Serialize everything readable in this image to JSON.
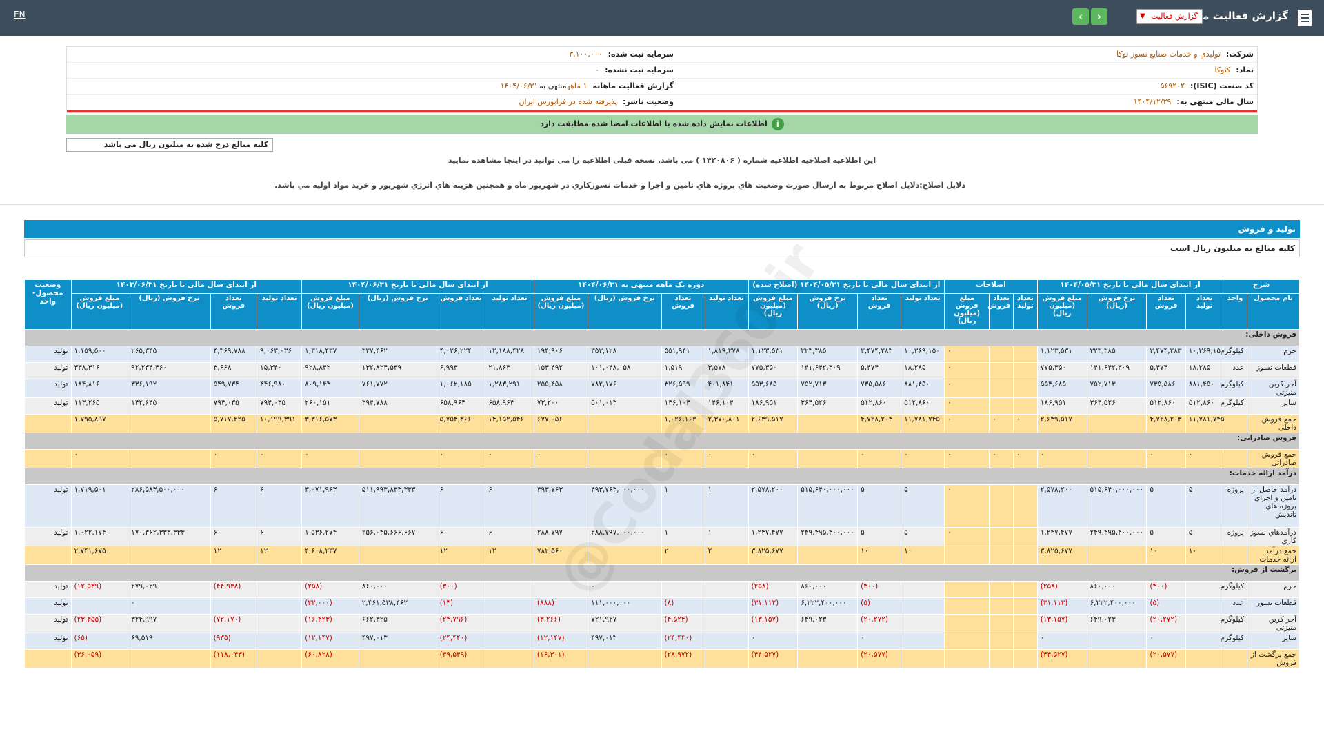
{
  "header": {
    "title": "گزارش فعالیت ماهانه",
    "select_value": "گزارش فعالیت",
    "lang": "EN",
    "prev_icon": "chevron-left-icon",
    "next_icon": "chevron-right-icon"
  },
  "company": {
    "company_label": "شرکت:",
    "company_value": "توليدي و خدمات صنايع نسوز توكا",
    "symbol_label": "نماد:",
    "symbol_value": "کتوکا",
    "isic_label": "کد صنعت (ISIC):",
    "isic_value": "۵۶۹۲۰۲",
    "fy_label": "سال مالی منتهی به:",
    "fy_value": "۱۴۰۴/۱۲/۲۹",
    "reg_capital_label": "سرمایه ثبت شده:",
    "reg_capital_value": "۳,۱۰۰,۰۰۰",
    "unreg_capital_label": "سرمایه ثبت نشده:",
    "unreg_capital_value": "۰",
    "report_label": "گزارش فعالیت ماهانه",
    "report_value": "۱ ماهه",
    "report_value2": "منتهی به",
    "report_value3": "۱۴۰۴/۰۶/۳۱",
    "status_label": "وضعیت ناشر:",
    "status_value": "پذیرفته شده در فرابورس ایران"
  },
  "green_message": "اطلاعات نمایش داده شده با اطلاعات امضا شده مطابقت دارد",
  "unit_note": "کلیه مبالغ درج شده به میلیون ریال می باشد",
  "notice1": "این اطلاعیه اصلاحیه اطلاعیه شماره ( ۱۴۲۰۸۰۶ ) می باشد. نسخه قبلی اطلاعیه را می توانید در اینجا مشاهده نمایید",
  "notice2": "دلایل اصلاح:دلايل اصلاح مربوط به ارسال صورت وضعيت هاي پروژه هاي تامين و اجرا و خدمات نسوزكاري در شهريور ماه و همچنين هزينه هاي انرژي شهريور و خريد مواد اوليه مي باشد.",
  "section_title": "تولید و فروش",
  "section_sub": "کلیه مبالغ به میلیون ریال است",
  "watermark": "@Codal360.ir",
  "table": {
    "group_headers": [
      "شرح",
      "از ابتدای سال مالی تا تاریخ ۱۴۰۴/۰۵/۳۱",
      "اصلاحات",
      "از ابتدای سال مالی تا تاریخ ۱۴۰۴/۰۵/۳۱ (اصلاح شده)",
      "دوره یک ماهه منتهی به ۱۴۰۴/۰۶/۳۱",
      "از ابتدای سال مالی تا تاریخ ۱۴۰۴/۰۶/۳۱",
      "از ابتدای سال مالی تا تاریخ ۱۴۰۳/۰۶/۳۱",
      "وضعیت محصول-واحد"
    ],
    "sub_headers": [
      "نام محصول",
      "واحد",
      "تعداد تولید",
      "تعداد فروش",
      "نرخ فروش (ریال)",
      "مبلغ فروش (میلیون ریال)",
      "تعداد تولید",
      "تعداد فروش",
      "مبلغ فروش (میلیون ریال)",
      "تعداد تولید",
      "تعداد فروش",
      "نرخ فروش (ریال)",
      "مبلغ فروش (میلیون ریال)",
      "تعداد تولید",
      "تعداد فروش",
      "نرخ فروش (ریال)",
      "مبلغ فروش (میلیون ریال)",
      "تعداد تولید",
      "تعداد فروش",
      "نرخ فروش (ریال)",
      "مبلغ فروش (میلیون ریال)",
      "تعداد تولید",
      "تعداد فروش",
      "نرخ فروش (ریال)",
      "مبلغ فروش (میلیون ریال)"
    ],
    "rows": [
      {
        "type": "sec",
        "label": "فروش داخلی:"
      },
      {
        "type": "even",
        "cells": [
          "جرم",
          "کیلوگرم",
          "۱۰,۳۶۹,۱۵۰",
          "۳,۴۷۴,۲۸۳",
          "۳۲۳,۳۸۵",
          "۱,۱۲۳,۵۳۱",
          "",
          "",
          "۰",
          "۱۰,۳۶۹,۱۵۰",
          "۳,۴۷۴,۲۸۳",
          "۳۲۳,۳۸۵",
          "۱,۱۲۳,۵۳۱",
          "۱,۸۱۹,۲۷۸",
          "۵۵۱,۹۴۱",
          "۳۵۳,۱۲۸",
          "۱۹۴,۹۰۶",
          "۱۲,۱۸۸,۴۲۸",
          "۴,۰۲۶,۲۲۴",
          "۳۲۷,۴۶۲",
          "۱,۳۱۸,۴۳۷",
          "۹,۰۶۳,۰۳۶",
          "۴,۳۶۹,۷۸۸",
          "۲۶۵,۳۴۵",
          "۱,۱۵۹,۵۰۰",
          "تولید"
        ]
      },
      {
        "type": "odd",
        "cells": [
          "قطعات نسوز",
          "عدد",
          "۱۸,۲۸۵",
          "۵,۴۷۴",
          "۱۴۱,۶۴۲,۳۰۹",
          "۷۷۵,۳۵۰",
          "",
          "",
          "۰",
          "۱۸,۲۸۵",
          "۵,۴۷۴",
          "۱۴۱,۶۴۲,۳۰۹",
          "۷۷۵,۳۵۰",
          "۳,۵۷۸",
          "۱,۵۱۹",
          "۱۰۱,۰۴۸,۰۵۸",
          "۱۵۳,۴۹۲",
          "۲۱,۸۶۳",
          "۶,۹۹۳",
          "۱۳۲,۸۲۴,۵۳۹",
          "۹۲۸,۸۴۲",
          "۱۵,۳۴۰",
          "۳,۶۶۸",
          "۹۲,۲۳۴,۴۶۰",
          "۳۳۸,۳۱۶",
          "تولید"
        ]
      },
      {
        "type": "even",
        "cells": [
          "آجر کربن منیزتی",
          "کیلوگرم",
          "۸۸۱,۴۵۰",
          "۷۳۵,۵۸۶",
          "۷۵۲,۷۱۳",
          "۵۵۳,۶۸۵",
          "",
          "",
          "۰",
          "۸۸۱,۴۵۰",
          "۷۳۵,۵۸۶",
          "۷۵۲,۷۱۳",
          "۵۵۳,۶۸۵",
          "۴۰۱,۸۴۱",
          "۳۲۶,۵۹۹",
          "۷۸۲,۱۷۶",
          "۲۵۵,۴۵۸",
          "۱,۲۸۳,۲۹۱",
          "۱,۰۶۲,۱۸۵",
          "۷۶۱,۷۷۲",
          "۸۰۹,۱۴۳",
          "۴۴۶,۹۸۰",
          "۵۴۹,۷۳۴",
          "۳۳۶,۱۹۲",
          "۱۸۴,۸۱۶",
          "تولید"
        ]
      },
      {
        "type": "odd",
        "cells": [
          "سایر",
          "کیلوگرم",
          "۵۱۲,۸۶۰",
          "۵۱۲,۸۶۰",
          "۳۶۴,۵۲۶",
          "۱۸۶,۹۵۱",
          "",
          "",
          "۰",
          "۵۱۲,۸۶۰",
          "۵۱۲,۸۶۰",
          "۳۶۴,۵۲۶",
          "۱۸۶,۹۵۱",
          "۱۴۶,۱۰۴",
          "۱۴۶,۱۰۴",
          "۵۰۱,۰۱۳",
          "۷۳,۲۰۰",
          "۶۵۸,۹۶۴",
          "۶۵۸,۹۶۴",
          "۳۹۴,۷۸۸",
          "۲۶۰,۱۵۱",
          "۷۹۴,۰۳۵",
          "۷۹۴,۰۳۵",
          "۱۴۲,۶۴۵",
          "۱۱۳,۲۶۵",
          "تولید"
        ]
      },
      {
        "type": "tot",
        "cells": [
          "جمع فروش داخلی",
          "",
          "۱۱,۷۸۱,۷۴۵",
          "۴,۷۲۸,۲۰۳",
          "",
          "۲,۶۳۹,۵۱۷",
          "۰",
          "۰",
          "۰",
          "۱۱,۷۸۱,۷۴۵",
          "۴,۷۲۸,۲۰۳",
          "",
          "۲,۶۳۹,۵۱۷",
          "۲,۳۷۰,۸۰۱",
          "۱,۰۲۶,۱۶۳",
          "",
          "۶۷۷,۰۵۶",
          "۱۴,۱۵۲,۵۴۶",
          "۵,۷۵۴,۳۶۶",
          "",
          "۳,۳۱۶,۵۷۳",
          "۱۰,۱۹۹,۳۹۱",
          "۵,۷۱۷,۲۲۵",
          "",
          "۱,۷۹۵,۸۹۷",
          ""
        ]
      },
      {
        "type": "sec",
        "label": "فروش صادراتی:"
      },
      {
        "type": "tot",
        "cells": [
          "جمع فروش صادراتی",
          "",
          "۰",
          "۰",
          "",
          "۰",
          "۰",
          "۰",
          "۰",
          "۰",
          "۰",
          "",
          "۰",
          "۰",
          "۰",
          "",
          "۰",
          "۰",
          "۰",
          "",
          "۰",
          "۰",
          "۰",
          "",
          "۰",
          ""
        ]
      },
      {
        "type": "sec",
        "label": "درآمد ارائه خدمات:"
      },
      {
        "type": "even",
        "tall": true,
        "cells": [
          "درآمد حاصل از تامين و اجراي پروژه هاي تانديش",
          "پروژه",
          "۵",
          "۵",
          "۵۱۵,۶۴۰,۰۰۰,۰۰۰",
          "۲,۵۷۸,۲۰۰",
          "",
          "",
          "۰",
          "۵",
          "۵",
          "۵۱۵,۶۴۰,۰۰۰,۰۰۰",
          "۲,۵۷۸,۲۰۰",
          "۱",
          "۱",
          "۴۹۳,۷۶۳,۰۰۰,۰۰۰",
          "۴۹۳,۷۶۳",
          "۶",
          "۶",
          "۵۱۱,۹۹۳,۸۳۳,۳۳۳",
          "۳,۰۷۱,۹۶۳",
          "۶",
          "۶",
          "۲۸۶,۵۸۳,۵۰۰,۰۰۰",
          "۱,۷۱۹,۵۰۱",
          "تولید"
        ]
      },
      {
        "type": "odd",
        "cells": [
          "درآمدهاي نسوز كاري",
          "پروژه",
          "۵",
          "۵",
          "۲۴۹,۴۹۵,۴۰۰,۰۰۰",
          "۱,۲۴۷,۴۷۷",
          "",
          "",
          "۰",
          "۵",
          "۵",
          "۲۴۹,۴۹۵,۴۰۰,۰۰۰",
          "۱,۲۴۷,۴۷۷",
          "۱",
          "۱",
          "۲۸۸,۷۹۷,۰۰۰,۰۰۰",
          "۲۸۸,۷۹۷",
          "۶",
          "۶",
          "۲۵۶,۰۴۵,۶۶۶,۶۶۷",
          "۱,۵۳۶,۲۷۴",
          "۶",
          "۶",
          "۱۷۰,۳۶۲,۳۳۳,۳۳۳",
          "۱,۰۲۲,۱۷۴",
          "تولید"
        ]
      },
      {
        "type": "tot",
        "cells": [
          "جمع درآمد ارائه خدمات",
          "",
          "۱۰",
          "۱۰",
          "",
          "۳,۸۲۵,۶۷۷",
          "",
          "",
          "",
          "۱۰",
          "۱۰",
          "",
          "۳,۸۲۵,۶۷۷",
          "۲",
          "۲",
          "",
          "۷۸۲,۵۶۰",
          "۱۲",
          "۱۲",
          "",
          "۴,۶۰۸,۲۳۷",
          "۱۲",
          "۱۲",
          "",
          "۲,۷۴۱,۶۷۵",
          ""
        ]
      },
      {
        "type": "sec",
        "label": "برگشت از فروش:"
      },
      {
        "type": "odd",
        "cells": [
          "جرم",
          "کیلوگرم",
          "",
          "(۳۰۰)",
          "۸۶۰,۰۰۰",
          "(۲۵۸)",
          "",
          "",
          "",
          "",
          "(۳۰۰)",
          "۸۶۰,۰۰۰",
          "(۲۵۸)",
          "",
          "",
          "۰",
          "",
          "",
          "(۳۰۰)",
          "۸۶۰,۰۰۰",
          "(۲۵۸)",
          "",
          "(۴۴,۹۳۸)",
          "۲۷۹,۰۲۹",
          "(۱۲,۵۳۹)",
          "تولید"
        ]
      },
      {
        "type": "even",
        "cells": [
          "قطعات نسوز",
          "عدد",
          "",
          "(۵)",
          "۶,۲۲۲,۴۰۰,۰۰۰",
          "(۳۱,۱۱۲)",
          "",
          "",
          "",
          "",
          "(۵)",
          "۶,۲۲۲,۴۰۰,۰۰۰",
          "(۳۱,۱۱۲)",
          "",
          "(۸)",
          "۱۱۱,۰۰۰,۰۰۰",
          "(۸۸۸)",
          "",
          "(۱۳)",
          "۲,۴۶۱,۵۳۸,۴۶۲",
          "(۳۲,۰۰۰)",
          "",
          "",
          "۰",
          "",
          "تولید"
        ]
      },
      {
        "type": "odd",
        "cells": [
          "آجر کربن منیزتی",
          "کیلوگرم",
          "",
          "(۲۰,۲۷۲)",
          "۶۴۹,۰۲۳",
          "(۱۳,۱۵۷)",
          "",
          "",
          "",
          "",
          "(۲۰,۲۷۲)",
          "۶۴۹,۰۲۳",
          "(۱۳,۱۵۷)",
          "",
          "(۴,۵۲۴)",
          "۷۲۱,۹۲۷",
          "(۳,۲۶۶)",
          "",
          "(۲۴,۷۹۶)",
          "۶۶۲,۳۲۵",
          "(۱۶,۴۲۳)",
          "",
          "(۷۲,۱۷۰)",
          "۳۲۴,۹۹۷",
          "(۲۳,۴۵۵)",
          "تولید"
        ]
      },
      {
        "type": "even",
        "cells": [
          "سایر",
          "کیلوگرم",
          "",
          "۰",
          "",
          "۰",
          "",
          "",
          "",
          "",
          "۰",
          "",
          "۰",
          "",
          "(۲۴,۴۴۰)",
          "۴۹۷,۰۱۳",
          "(۱۲,۱۴۷)",
          "",
          "(۲۴,۴۴۰)",
          "۴۹۷,۰۱۳",
          "(۱۲,۱۴۷)",
          "",
          "(۹۳۵)",
          "۶۹,۵۱۹",
          "(۶۵)",
          "تولید"
        ]
      },
      {
        "type": "tot",
        "cells": [
          "جمع برگشت از فروش",
          "",
          "",
          "(۲۰,۵۷۷)",
          "",
          "(۴۴,۵۲۷)",
          "",
          "",
          "",
          "",
          "(۲۰,۵۷۷)",
          "",
          "(۴۴,۵۲۷)",
          "",
          "(۲۸,۹۷۲)",
          "",
          "(۱۶,۳۰۱)",
          "",
          "(۴۹,۵۴۹)",
          "",
          "(۶۰,۸۲۸)",
          "",
          "(۱۱۸,۰۴۳)",
          "",
          "(۳۶,۰۵۹)",
          ""
        ]
      }
    ]
  }
}
